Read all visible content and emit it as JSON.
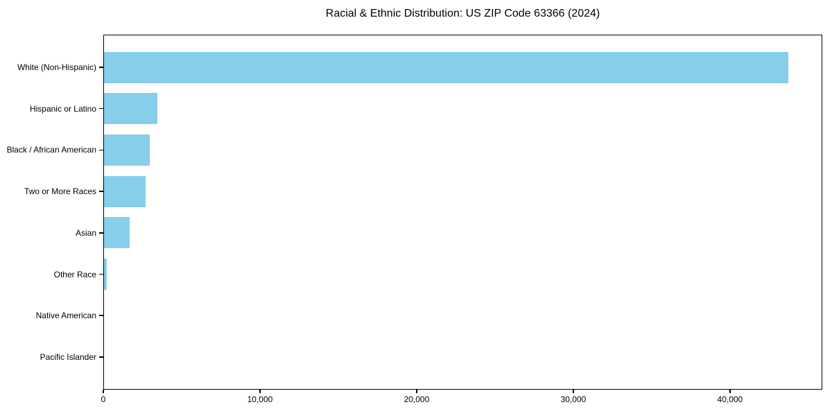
{
  "chart_data": {
    "type": "bar",
    "orientation": "horizontal",
    "title": "Racial & Ethnic Distribution: US ZIP Code 63366 (2024)",
    "categories": [
      "White (Non-Hispanic)",
      "Hispanic or Latino",
      "Black / African American",
      "Two or More Races",
      "Asian",
      "Other Race",
      "Native American",
      "Pacific Islander"
    ],
    "values": [
      43700,
      3450,
      2950,
      2690,
      1680,
      210,
      60,
      20
    ],
    "xlabel": "",
    "ylabel": "",
    "xlim": [
      0,
      45890
    ],
    "xticks": [
      0,
      10000,
      20000,
      30000,
      40000
    ],
    "xtick_labels": [
      "0",
      "10,000",
      "20,000",
      "30,000",
      "40,000"
    ],
    "bar_color": "#87ceeb",
    "grid": false,
    "legend": null
  }
}
